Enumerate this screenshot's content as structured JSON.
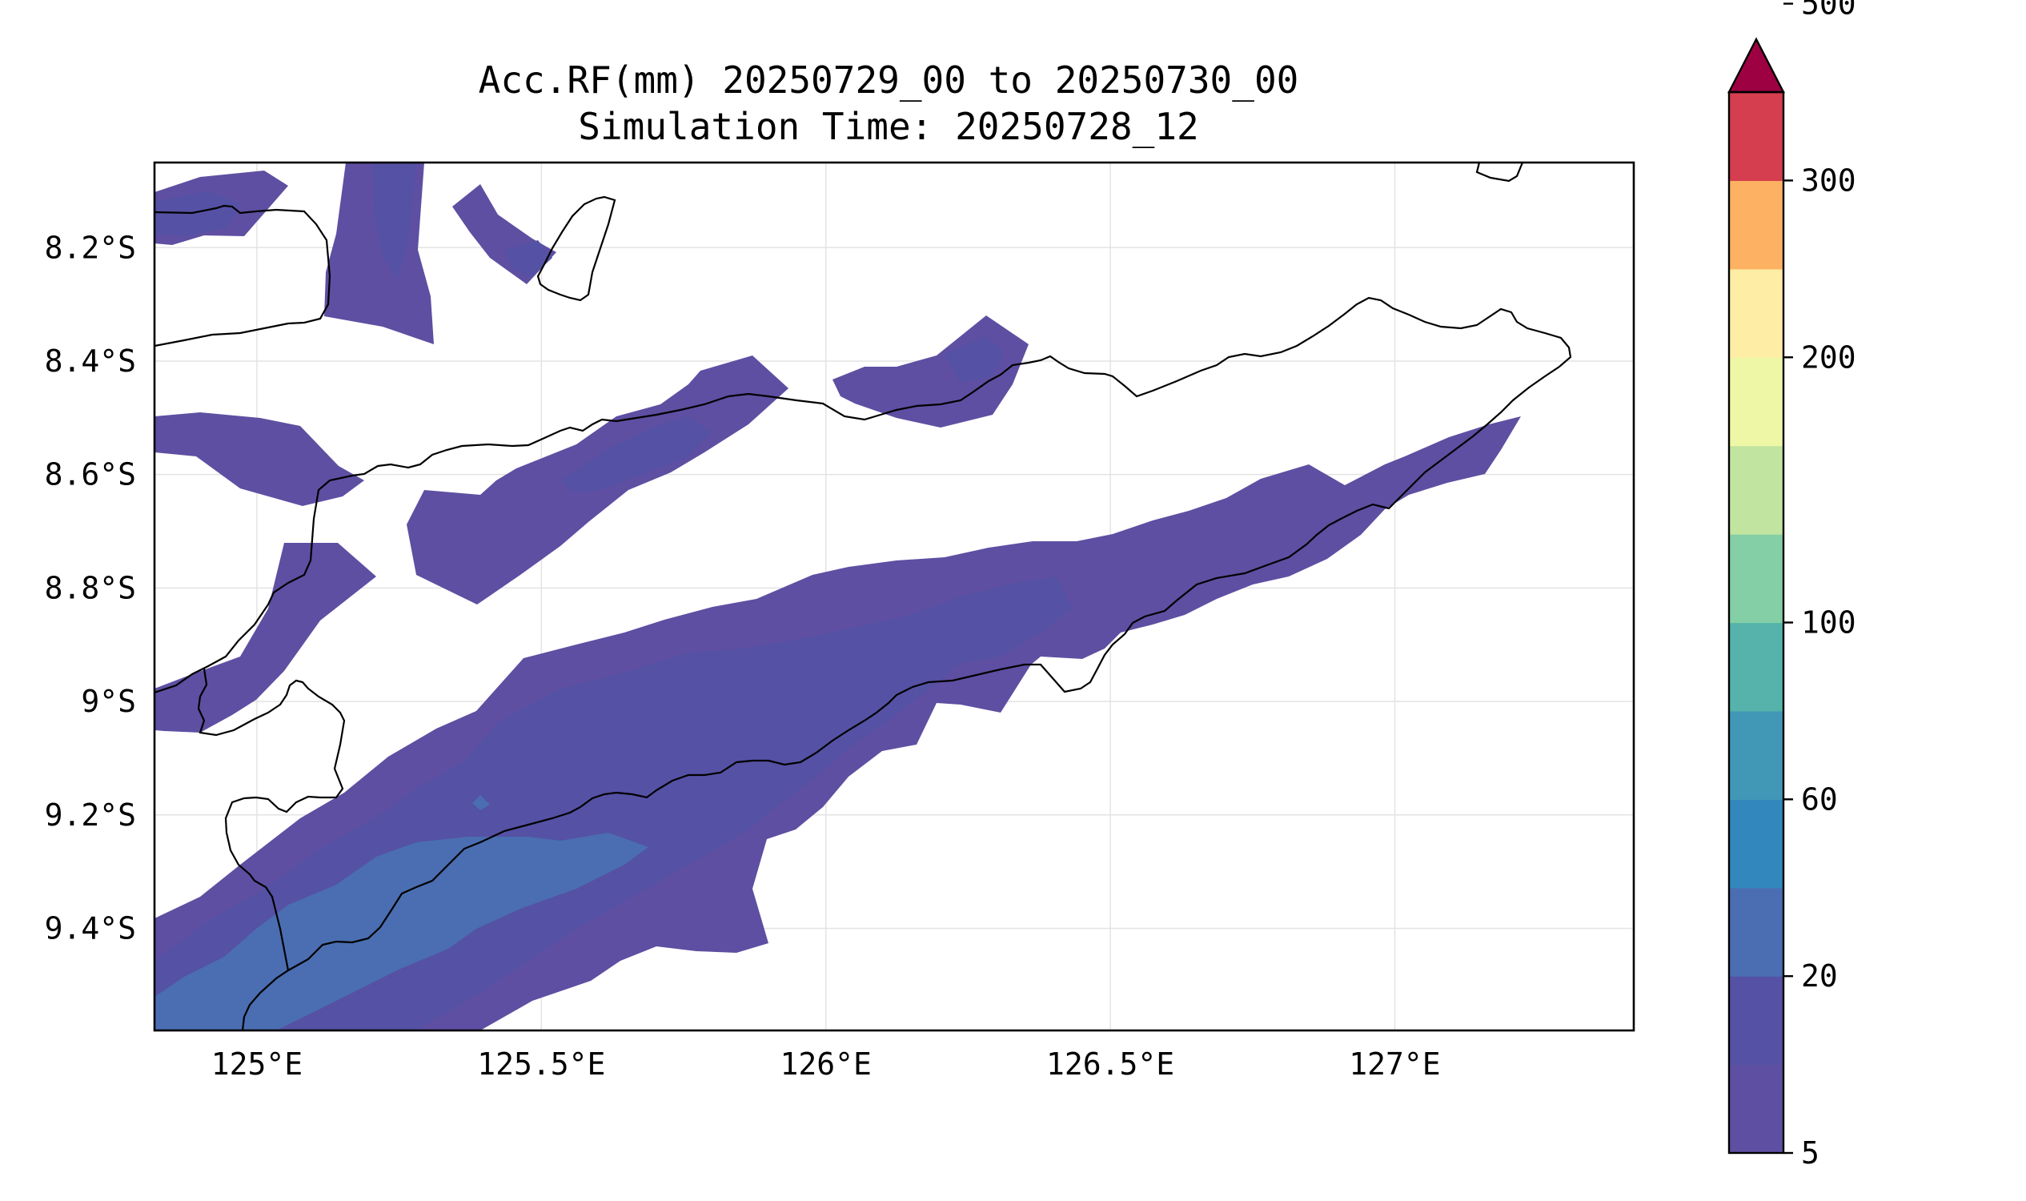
{
  "title": {
    "line1": "Acc.RF(mm) 20250729_00 to 20250730_00",
    "line2": "Simulation Time: 20250728_12"
  },
  "map": {
    "lon_range": [
      124.82,
      127.42
    ],
    "lat_range": [
      -9.58,
      -8.05
    ],
    "gridlines": true,
    "x_ticks": [
      {
        "value": 125.0,
        "label": "125°E"
      },
      {
        "value": 125.5,
        "label": "125.5°E"
      },
      {
        "value": 126.0,
        "label": "126°E"
      },
      {
        "value": 126.5,
        "label": "126.5°E"
      },
      {
        "value": 127.0,
        "label": "127°E"
      }
    ],
    "y_ticks": [
      {
        "value": -8.2,
        "label": "8.2°S"
      },
      {
        "value": -8.4,
        "label": "8.4°S"
      },
      {
        "value": -8.6,
        "label": "8.6°S"
      },
      {
        "value": -8.8,
        "label": "8.8°S"
      },
      {
        "value": -9.0,
        "label": "9°S"
      },
      {
        "value": -9.2,
        "label": "9.2°S"
      },
      {
        "value": -9.4,
        "label": "9.4°S"
      }
    ]
  },
  "colorbar": {
    "levels": [
      5,
      10,
      20,
      40,
      60,
      80,
      100,
      120,
      150,
      200,
      250,
      300,
      400,
      500
    ],
    "colors": [
      "#5e4fa2",
      "#5551a4",
      "#4a6eb1",
      "#3288bd",
      "#4198b6",
      "#55b3ab",
      "#84cfa5",
      "#c1e4a0",
      "#eef7a6",
      "#fdeda5",
      "#fdb163",
      "#d53e4f"
    ],
    "extend_color": "#9e0142",
    "labeled_levels": [
      5,
      20,
      60,
      100,
      200,
      300,
      500
    ]
  }
}
